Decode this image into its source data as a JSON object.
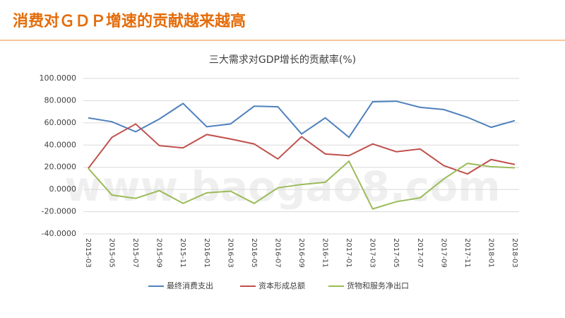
{
  "header": {
    "title": "消费对ＧＤＰ增速的贡献越来越高"
  },
  "watermark": "www.baogao8.com",
  "chart_data": {
    "type": "line",
    "title": "三大需求对GDP增长的贡献率(%)",
    "categories": [
      "2015-03",
      "2015-05",
      "2015-07",
      "2015-09",
      "2015-11",
      "2016-01",
      "2016-03",
      "2016-05",
      "2016-07",
      "2016-09",
      "2016-11",
      "2017-01",
      "2017-03",
      "2017-05",
      "2017-07",
      "2017-09",
      "2017-11",
      "2018-01",
      "2018-03"
    ],
    "series": [
      {
        "name": "最终消费支出",
        "color": "#4f81bd",
        "values": [
          64.5,
          61,
          52,
          63.5,
          77.5,
          56.5,
          59,
          75,
          74.5,
          50,
          64.5,
          47,
          79,
          79.5,
          74,
          72,
          65,
          56,
          62
        ]
      },
      {
        "name": "资本形成总额",
        "color": "#c0504d",
        "values": [
          19,
          47,
          59,
          39.5,
          37.5,
          49.5,
          45.5,
          41,
          27.5,
          47.5,
          32,
          30.5,
          41,
          34,
          36.5,
          21.5,
          14,
          27,
          22.5
        ]
      },
      {
        "name": "货物和服务净出口",
        "color": "#9bbb59",
        "values": [
          19,
          -5,
          -8,
          -1,
          -12.5,
          -3,
          -1.5,
          -12.5,
          1.5,
          4.5,
          6.5,
          25.5,
          -17.5,
          -11,
          -7.5,
          9.5,
          23.5,
          20.5,
          19.5
        ]
      }
    ],
    "ylim": [
      -40,
      100
    ],
    "yticks": [
      {
        "value": -40,
        "label": "-40.0000"
      },
      {
        "value": -20,
        "label": "-20.0000"
      },
      {
        "value": 0,
        "label": "0.0000"
      },
      {
        "value": 20,
        "label": "20.0000"
      },
      {
        "value": 40,
        "label": "40.0000"
      },
      {
        "value": 60,
        "label": "60.0000"
      },
      {
        "value": 80,
        "label": "80.0000"
      },
      {
        "value": 100,
        "label": "100.0000"
      }
    ],
    "grid": true,
    "legend": "bottom"
  }
}
